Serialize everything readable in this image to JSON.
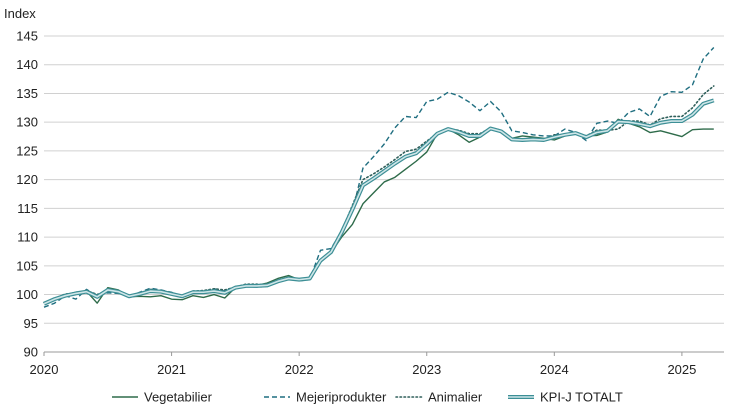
{
  "chart_data": {
    "type": "line",
    "ylabel": "Index",
    "ylim": [
      90,
      145
    ],
    "yticks": [
      90,
      95,
      100,
      105,
      110,
      115,
      120,
      125,
      130,
      135,
      140,
      145
    ],
    "xlim": [
      2020.0,
      2025.33
    ],
    "xticks": [
      "2020",
      "2021",
      "2022",
      "2023",
      "2024",
      "2025"
    ],
    "grid": "horizontal",
    "legend_position": "bottom",
    "series": [
      {
        "name": "Vegetabilier",
        "color": "#2e6b4a",
        "style": "solid",
        "x": [
          2020.0,
          2020.083,
          2020.167,
          2020.25,
          2020.333,
          2020.417,
          2020.5,
          2020.583,
          2020.667,
          2020.75,
          2020.833,
          2020.917,
          2021.0,
          2021.083,
          2021.167,
          2021.25,
          2021.333,
          2021.417,
          2021.5,
          2021.583,
          2021.667,
          2021.75,
          2021.833,
          2021.917,
          2022.0,
          2022.083,
          2022.167,
          2022.25,
          2022.333,
          2022.417,
          2022.5,
          2022.583,
          2022.667,
          2022.75,
          2022.833,
          2022.917,
          2023.0,
          2023.083,
          2023.167,
          2023.25,
          2023.333,
          2023.417,
          2023.5,
          2023.583,
          2023.667,
          2023.75,
          2023.833,
          2023.917,
          2024.0,
          2024.083,
          2024.167,
          2024.25,
          2024.333,
          2024.417,
          2024.5,
          2024.583,
          2024.667,
          2024.75,
          2024.833,
          2024.917,
          2025.0,
          2025.083,
          2025.167,
          2025.25
        ],
        "values": [
          98.5,
          99.3,
          100.0,
          100.4,
          100.6,
          98.5,
          101.2,
          100.8,
          99.6,
          99.7,
          99.6,
          99.8,
          99.2,
          99.1,
          99.8,
          99.5,
          100.0,
          99.4,
          101.2,
          101.5,
          101.6,
          102.0,
          102.8,
          103.3,
          102.6,
          102.6,
          105.8,
          107.3,
          110.0,
          112.2,
          115.8,
          117.7,
          119.6,
          120.4,
          121.8,
          123.2,
          124.8,
          128.0,
          128.8,
          127.8,
          126.5,
          127.4,
          128.8,
          128.2,
          127.2,
          127.6,
          127.4,
          127.2,
          126.9,
          127.6,
          128.2,
          127.6,
          127.7,
          128.3,
          130.5,
          129.8,
          129.2,
          128.2,
          128.5,
          128.0,
          127.5,
          128.7,
          128.8,
          128.8
        ]
      },
      {
        "name": "Mejeriprodukter",
        "color": "#1f6e80",
        "style": "dashed",
        "x": [
          2020.0,
          2020.083,
          2020.167,
          2020.25,
          2020.333,
          2020.417,
          2020.5,
          2020.583,
          2020.667,
          2020.75,
          2020.833,
          2020.917,
          2021.0,
          2021.083,
          2021.167,
          2021.25,
          2021.333,
          2021.417,
          2021.5,
          2021.583,
          2021.667,
          2021.75,
          2021.833,
          2021.917,
          2022.0,
          2022.083,
          2022.167,
          2022.25,
          2022.333,
          2022.417,
          2022.5,
          2022.583,
          2022.667,
          2022.75,
          2022.833,
          2022.917,
          2023.0,
          2023.083,
          2023.167,
          2023.25,
          2023.333,
          2023.417,
          2023.5,
          2023.583,
          2023.667,
          2023.75,
          2023.833,
          2023.917,
          2024.0,
          2024.083,
          2024.167,
          2024.25,
          2024.333,
          2024.417,
          2024.5,
          2024.583,
          2024.667,
          2024.75,
          2024.833,
          2024.917,
          2025.0,
          2025.083,
          2025.167,
          2025.25
        ],
        "values": [
          97.8,
          98.5,
          99.8,
          99.2,
          100.9,
          99.8,
          100.3,
          100.2,
          99.7,
          100.4,
          101.1,
          100.8,
          100.4,
          99.6,
          100.6,
          100.5,
          101.0,
          100.6,
          101.1,
          101.4,
          101.3,
          101.4,
          102.4,
          102.7,
          102.4,
          102.6,
          107.7,
          108.0,
          111.0,
          114.4,
          122.0,
          124.0,
          126.2,
          129.0,
          131.0,
          130.8,
          133.6,
          134.0,
          135.2,
          134.6,
          133.5,
          132.0,
          133.6,
          131.8,
          128.5,
          128.2,
          127.8,
          127.6,
          127.6,
          128.8,
          128.2,
          126.8,
          129.8,
          130.2,
          129.8,
          131.7,
          132.3,
          131.0,
          134.5,
          135.3,
          135.2,
          136.5,
          141.0,
          143.0
        ]
      },
      {
        "name": "Animalier",
        "color": "#2f5f5a",
        "style": "dotted",
        "x": [
          2020.0,
          2020.083,
          2020.167,
          2020.25,
          2020.333,
          2020.417,
          2020.5,
          2020.583,
          2020.667,
          2020.75,
          2020.833,
          2020.917,
          2021.0,
          2021.083,
          2021.167,
          2021.25,
          2021.333,
          2021.417,
          2021.5,
          2021.583,
          2021.667,
          2021.75,
          2021.833,
          2021.917,
          2022.0,
          2022.083,
          2022.167,
          2022.25,
          2022.333,
          2022.417,
          2022.5,
          2022.583,
          2022.667,
          2022.75,
          2022.833,
          2022.917,
          2023.0,
          2023.083,
          2023.167,
          2023.25,
          2023.333,
          2023.417,
          2023.5,
          2023.583,
          2023.667,
          2023.75,
          2023.833,
          2023.917,
          2024.0,
          2024.083,
          2024.167,
          2024.25,
          2024.333,
          2024.417,
          2024.5,
          2024.583,
          2024.667,
          2024.75,
          2024.833,
          2024.917,
          2025.0,
          2025.083,
          2025.167,
          2025.25
        ],
        "values": [
          98.6,
          99.3,
          100.1,
          100.2,
          100.7,
          100.0,
          100.7,
          100.5,
          99.8,
          100.2,
          100.9,
          100.7,
          100.3,
          99.8,
          100.6,
          100.7,
          101.0,
          100.8,
          101.3,
          101.8,
          101.8,
          101.6,
          102.3,
          102.7,
          102.6,
          103.0,
          106.0,
          107.5,
          111.0,
          115.5,
          120.0,
          121.0,
          122.2,
          123.5,
          124.9,
          125.3,
          126.7,
          128.0,
          128.8,
          128.6,
          128.0,
          128.0,
          129.0,
          128.6,
          127.2,
          127.0,
          127.2,
          126.8,
          127.8,
          127.8,
          128.2,
          127.6,
          128.6,
          128.6,
          128.8,
          130.2,
          130.2,
          129.5,
          130.6,
          131.0,
          131.0,
          132.5,
          134.8,
          136.3
        ]
      },
      {
        "name": "KPI-J TOTALT",
        "color": "#3d8f96",
        "style": "double",
        "x": [
          2020.0,
          2020.083,
          2020.167,
          2020.25,
          2020.333,
          2020.417,
          2020.5,
          2020.583,
          2020.667,
          2020.75,
          2020.833,
          2020.917,
          2021.0,
          2021.083,
          2021.167,
          2021.25,
          2021.333,
          2021.417,
          2021.5,
          2021.583,
          2021.667,
          2021.75,
          2021.833,
          2021.917,
          2022.0,
          2022.083,
          2022.167,
          2022.25,
          2022.333,
          2022.417,
          2022.5,
          2022.583,
          2022.667,
          2022.75,
          2022.833,
          2022.917,
          2023.0,
          2023.083,
          2023.167,
          2023.25,
          2023.333,
          2023.417,
          2023.5,
          2023.583,
          2023.667,
          2023.75,
          2023.833,
          2023.917,
          2024.0,
          2024.083,
          2024.167,
          2024.25,
          2024.333,
          2024.417,
          2024.5,
          2024.583,
          2024.667,
          2024.75,
          2024.833,
          2024.917,
          2025.0,
          2025.083,
          2025.167,
          2025.25
        ],
        "values": [
          98.4,
          99.2,
          99.8,
          100.2,
          100.5,
          99.6,
          100.8,
          100.5,
          99.7,
          100.1,
          100.6,
          100.5,
          100.1,
          99.7,
          100.4,
          100.4,
          100.6,
          100.3,
          101.2,
          101.5,
          101.5,
          101.6,
          102.3,
          102.8,
          102.6,
          102.8,
          105.9,
          107.4,
          110.8,
          114.8,
          119.0,
          120.2,
          121.5,
          122.8,
          124.0,
          124.6,
          126.2,
          128.0,
          128.8,
          128.3,
          127.6,
          127.6,
          128.9,
          128.4,
          127.0,
          126.9,
          127.0,
          126.9,
          127.4,
          127.8,
          128.1,
          127.4,
          128.2,
          128.5,
          130.1,
          130.0,
          129.7,
          129.3,
          129.9,
          130.2,
          130.2,
          131.3,
          133.2,
          133.8
        ]
      }
    ]
  }
}
